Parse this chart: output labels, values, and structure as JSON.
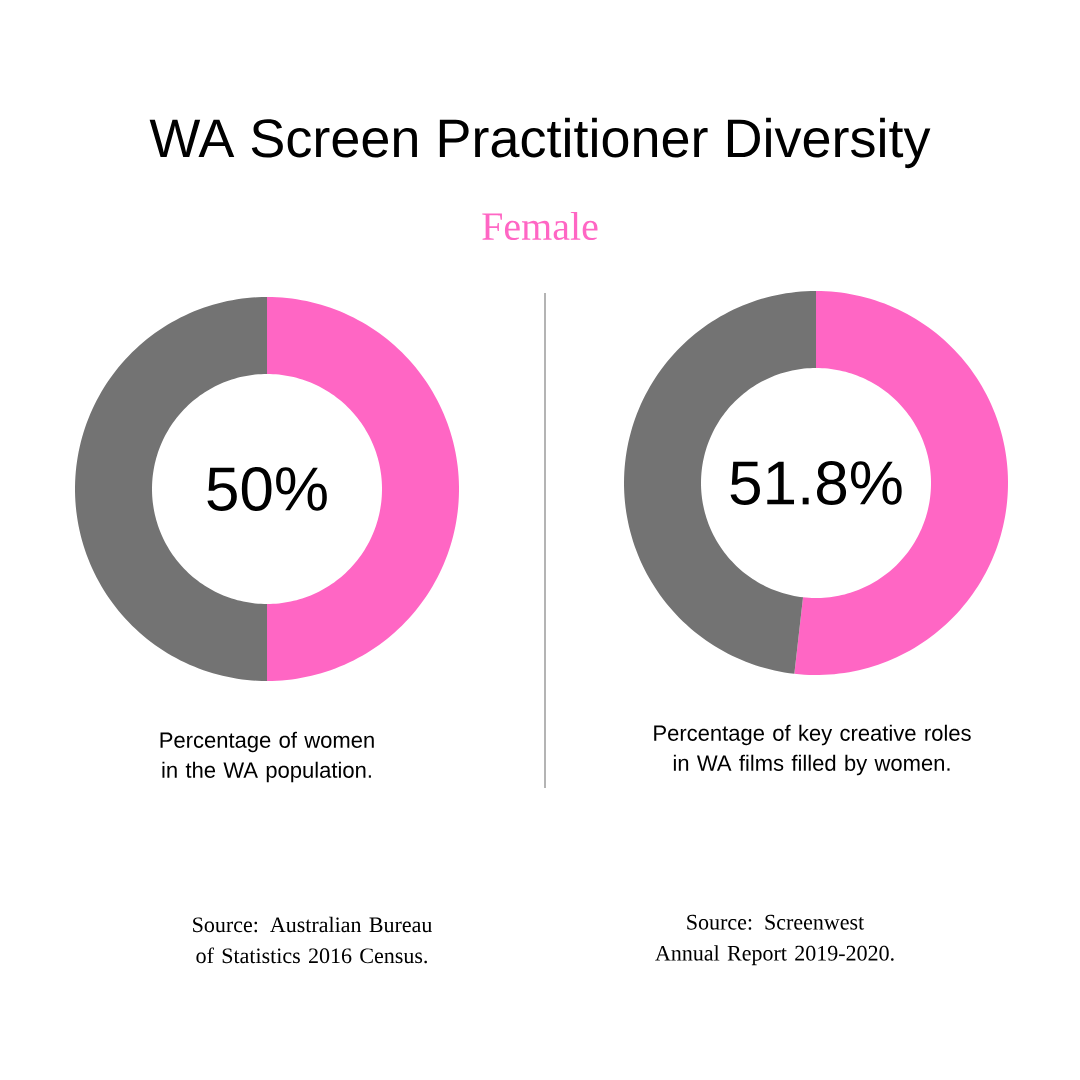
{
  "chart_data": [
    {
      "type": "donut",
      "title": "WA Screen Practitioner Diversity",
      "subtitle": "Female",
      "categories": [
        null,
        null
      ],
      "values": [
        50,
        50
      ],
      "colors": [
        "#ff66c4",
        "#737373"
      ],
      "annotations": [
        "50%",
        "Percentage of women in the WA population.",
        "Source: Australian Bureau of Statistics 2016 Census."
      ]
    },
    {
      "type": "donut",
      "categories": [
        null,
        null
      ],
      "values": [
        51.8,
        48.2
      ],
      "colors": [
        "#ff66c4",
        "#737373"
      ],
      "annotations": [
        "51.8%",
        "Percentage of key creative roles in WA films filled by women.",
        "Source: Screenwest Annual Report 2019-2020."
      ]
    }
  ]
}
